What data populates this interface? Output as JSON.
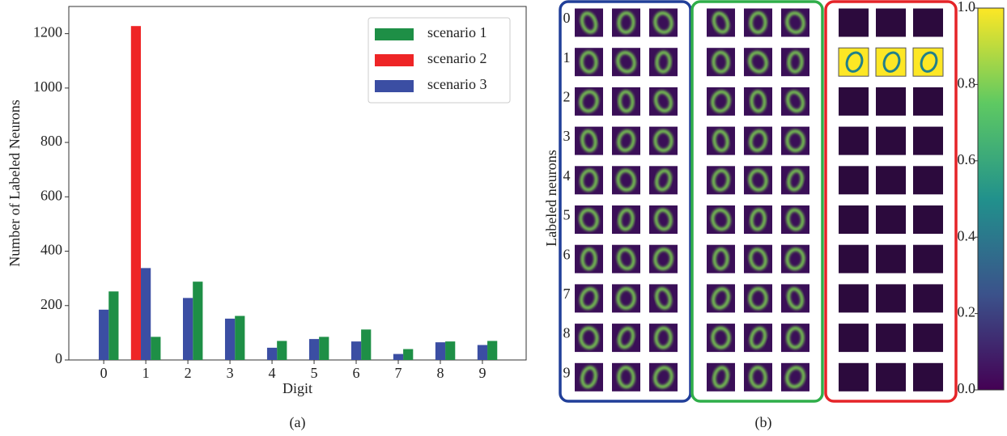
{
  "chart_data": [
    {
      "type": "bar",
      "panel_label": "(a)",
      "xlabel": "Digit",
      "ylabel": "Number of Labeled Neurons",
      "x": [
        0,
        1,
        2,
        3,
        4,
        5,
        6,
        7,
        8,
        9
      ],
      "series": [
        {
          "name": "scenario 1",
          "color": "#1e8f46",
          "values": [
            252,
            85,
            288,
            162,
            70,
            85,
            112,
            40,
            68,
            70
          ]
        },
        {
          "name": "scenario 2",
          "color": "#ee2526",
          "values": [
            0,
            1228,
            0,
            0,
            0,
            0,
            0,
            0,
            0,
            0
          ]
        },
        {
          "name": "scenario 3",
          "color": "#3b4ea3",
          "values": [
            185,
            338,
            228,
            152,
            45,
            77,
            68,
            22,
            65,
            55
          ]
        }
      ],
      "xlim": [
        -0.83,
        10.04
      ],
      "xticks": [
        0,
        1,
        2,
        3,
        4,
        5,
        6,
        7,
        8,
        9
      ],
      "ylim": [
        0,
        1300
      ],
      "yticks": [
        0,
        200,
        400,
        600,
        800,
        1000,
        1200
      ],
      "legend": "upper right"
    },
    {
      "type": "image-grid",
      "panel_label": "(b)",
      "ylabel": "Labeled neurons",
      "categories": [
        "0",
        "1",
        "2",
        "3",
        "4",
        "5",
        "6",
        "7",
        "8",
        "9"
      ],
      "group_colors": [
        "#213f99",
        "#2fae49",
        "#e52428"
      ],
      "colorbar": {
        "colormap": "viridis",
        "lim": [
          0,
          1
        ],
        "ticks": [
          {
            "value": 0,
            "label": "0.0"
          },
          0.2,
          0.4,
          0.6,
          0.8,
          {
            "value": 1,
            "label": "1.0"
          }
        ]
      }
    }
  ]
}
